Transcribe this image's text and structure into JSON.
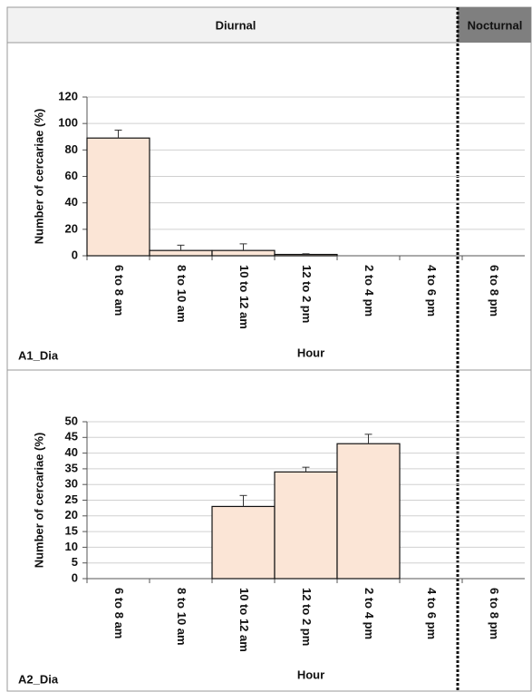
{
  "header": {
    "left": "Diurnal",
    "right": "Nocturnal"
  },
  "chart_data": [
    {
      "type": "bar",
      "panel_label": "A1_Dia",
      "x_label": "Hour",
      "y_label": "Number of cercariae (%)",
      "categories": [
        "6 to 8 am",
        "8 to 10 am",
        "10 to 12 am",
        "12 to 2 pm",
        "2 to 4 pm",
        "4 to 6 pm",
        "6 to 8 pm"
      ],
      "values": [
        89,
        4,
        4,
        1,
        0,
        0,
        0
      ],
      "errors": [
        6,
        4,
        5,
        0.5,
        0,
        0,
        0
      ],
      "color": "#fbe5d6",
      "ylim": [
        0,
        120
      ],
      "yticks": [
        0,
        20,
        40,
        60,
        80,
        100,
        120
      ],
      "grid": true
    },
    {
      "type": "bar",
      "panel_label": "A2_Dia",
      "x_label": "Hour",
      "y_label": "Number of cercariae (%)",
      "categories": [
        "6 to 8 am",
        "8 to 10 am",
        "10 to 12 am",
        "12 to 2 pm",
        "2 to 4 pm",
        "4 to 6 pm",
        "6 to 8 pm"
      ],
      "values": [
        0,
        0,
        23,
        34,
        43,
        0,
        0
      ],
      "errors": [
        0,
        0,
        3.5,
        1.5,
        3,
        0,
        0
      ],
      "color": "#fbe5d6",
      "ylim": [
        0,
        50
      ],
      "yticks": [
        0,
        5,
        10,
        15,
        20,
        25,
        30,
        35,
        40,
        45,
        50
      ],
      "grid": true
    }
  ]
}
